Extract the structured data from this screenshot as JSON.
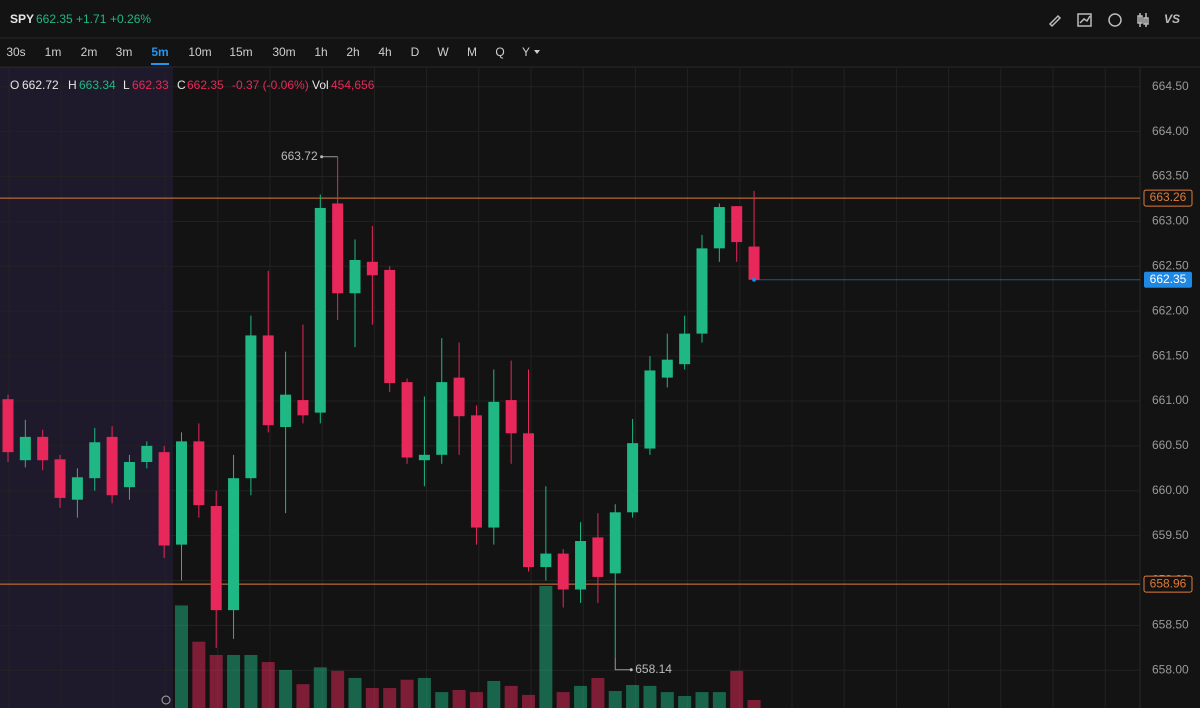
{
  "header": {
    "symbol": "SPY",
    "price": "662.35",
    "change": "+1.71",
    "change_pct": "+0.26%"
  },
  "intervals": [
    "30s",
    "1m",
    "2m",
    "3m",
    "5m",
    "10m",
    "15m",
    "30m",
    "1h",
    "2h",
    "4h",
    "D",
    "W",
    "M",
    "Q",
    "Y"
  ],
  "active_interval": 4,
  "legend": {
    "o_label": "O",
    "o": "662.72",
    "h_label": "H",
    "h": "663.34",
    "l_label": "L",
    "l": "662.33",
    "c_label": "C",
    "c": "662.35",
    "chg": "-0.37 (-0.06%)",
    "vol_label": "Vol",
    "vol": "454,656"
  },
  "chart_data": {
    "type": "candlestick",
    "open": [
      661.02,
      660.34,
      660.6,
      660.35,
      659.9,
      660.14,
      660.6,
      660.04,
      660.32,
      660.43,
      659.4,
      660.55,
      659.83,
      658.67,
      660.14,
      661.73,
      660.71,
      661.01,
      660.87,
      663.2,
      662.2,
      662.55,
      662.46,
      661.21,
      660.34,
      660.4,
      661.26,
      660.84,
      659.59,
      661.01,
      660.64,
      659.15,
      659.3,
      658.9,
      659.48,
      659.08,
      659.76,
      660.47,
      661.26,
      661.41,
      661.75,
      662.7,
      663.17,
      662.72
    ],
    "high": [
      661.07,
      660.79,
      660.68,
      660.4,
      660.25,
      660.7,
      660.72,
      660.4,
      660.55,
      660.5,
      660.65,
      660.75,
      660.0,
      660.4,
      661.95,
      662.45,
      661.55,
      661.85,
      663.3,
      663.72,
      662.8,
      662.95,
      662.5,
      661.25,
      661.05,
      661.7,
      661.65,
      660.95,
      661.35,
      661.45,
      661.35,
      660.05,
      659.35,
      659.65,
      659.75,
      659.85,
      660.8,
      661.5,
      661.75,
      661.95,
      662.85,
      663.2,
      663.17,
      663.34
    ],
    "low": [
      660.32,
      660.26,
      660.23,
      659.81,
      659.7,
      660.0,
      659.86,
      659.9,
      660.25,
      659.25,
      659.0,
      659.7,
      658.25,
      658.35,
      659.95,
      660.65,
      659.75,
      660.75,
      660.75,
      661.9,
      661.6,
      661.85,
      661.1,
      660.3,
      660.05,
      660.3,
      660.4,
      659.4,
      659.4,
      660.3,
      659.1,
      659.0,
      658.7,
      658.75,
      658.75,
      658.14,
      659.7,
      660.4,
      661.15,
      661.35,
      661.65,
      662.55,
      662.55,
      662.33
    ],
    "close": [
      660.43,
      660.6,
      660.34,
      659.92,
      660.15,
      660.54,
      659.95,
      660.32,
      660.5,
      659.39,
      660.55,
      659.84,
      658.67,
      660.14,
      661.73,
      660.73,
      661.07,
      660.84,
      663.15,
      662.2,
      662.57,
      662.4,
      661.2,
      660.37,
      660.4,
      661.21,
      660.83,
      659.59,
      660.99,
      660.64,
      659.15,
      659.3,
      658.9,
      659.44,
      659.04,
      659.76,
      660.53,
      661.34,
      661.46,
      661.75,
      662.7,
      663.16,
      662.77,
      662.35
    ],
    "volume": [
      null,
      null,
      null,
      null,
      null,
      null,
      null,
      null,
      null,
      null,
      5800000,
      3750000,
      3000000,
      3000000,
      3000000,
      2600000,
      2150000,
      1350000,
      2300000,
      2100000,
      1700000,
      1130000,
      1130000,
      1600000,
      1700000,
      900000,
      1020000,
      900000,
      1530000,
      1250000,
      740000,
      6900000,
      900000,
      1250000,
      1700000,
      960000,
      1300000,
      1250000,
      900000,
      680000,
      900000,
      900000,
      2100000,
      454656
    ],
    "up_color": "#1fb885",
    "down_color": "#e8275a",
    "ylim": [
      657.58,
      664.72
    ],
    "yticks": [
      {
        "value": 658,
        "label": "658.00"
      },
      {
        "value": 658.5,
        "label": "658.50"
      },
      {
        "value": 659,
        "label": "659.00"
      },
      {
        "value": 659.5,
        "label": "659.50"
      },
      {
        "value": 660,
        "label": "660.00"
      },
      {
        "value": 660.5,
        "label": "660.50"
      },
      {
        "value": 661,
        "label": "661.00"
      },
      {
        "value": 661.5,
        "label": "661.50"
      },
      {
        "value": 662,
        "label": "662.00"
      },
      {
        "value": 662.5,
        "label": "662.50"
      },
      {
        "value": 663,
        "label": "663.00"
      },
      {
        "value": 663.5,
        "label": "663.50"
      },
      {
        "value": 664,
        "label": "664.00"
      },
      {
        "value": 664.5,
        "label": "664.50"
      }
    ],
    "levels": [
      663.26,
      658.96
    ],
    "level_color": "#e07b39",
    "last": 662.35,
    "last_color": "#1e88e5",
    "annotations": [
      663.72,
      658.14
    ],
    "grid": true
  }
}
